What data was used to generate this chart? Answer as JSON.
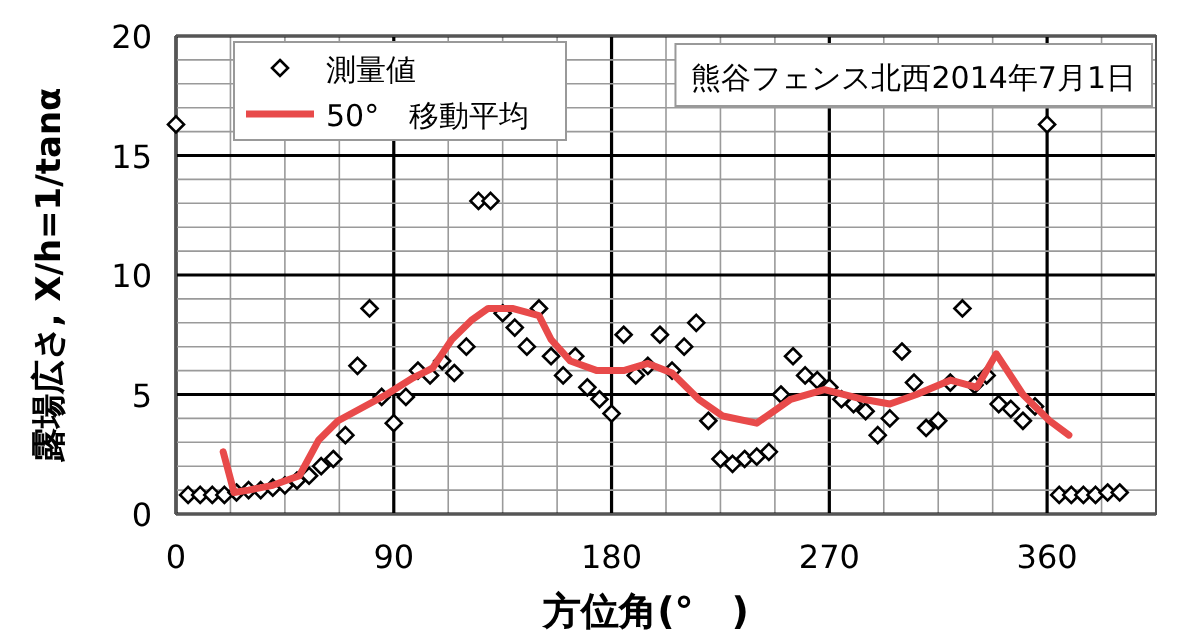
{
  "chart_data": {
    "type": "scatter",
    "xlabel": "方位角(°　)",
    "ylabel": "露場広さ, X/h=1/tanα",
    "annotations": [
      "熊谷フェンス北西2014年7月1日"
    ],
    "xlim": [
      0,
      405
    ],
    "ylim": [
      0,
      20
    ],
    "xticks": [
      0,
      90,
      180,
      270,
      360
    ],
    "yticks": [
      0,
      5,
      10,
      15,
      20
    ],
    "grid": true,
    "legend": "top left",
    "series": [
      {
        "name": "測量値",
        "marker": "diamond",
        "color": "#000000",
        "x": [
          0,
          5,
          10,
          15,
          20,
          25,
          30,
          35,
          40,
          45,
          50,
          55,
          60,
          65,
          70,
          75,
          80,
          85,
          90,
          95,
          100,
          105,
          110,
          115,
          120,
          125,
          130,
          135,
          140,
          145,
          150,
          155,
          160,
          165,
          170,
          175,
          180,
          185,
          190,
          195,
          200,
          205,
          210,
          215,
          220,
          225,
          230,
          235,
          240,
          245,
          250,
          255,
          260,
          265,
          270,
          275,
          280,
          285,
          290,
          295,
          300,
          305,
          310,
          315,
          320,
          325,
          330,
          335,
          340,
          345,
          350,
          355,
          360,
          365,
          370,
          375,
          380,
          385,
          390
        ],
        "values": [
          16.3,
          0.8,
          0.8,
          0.8,
          0.8,
          0.9,
          1.0,
          1.0,
          1.1,
          1.2,
          1.4,
          1.6,
          2.0,
          2.3,
          3.3,
          6.2,
          8.6,
          4.9,
          3.8,
          4.9,
          6.0,
          5.8,
          6.4,
          5.9,
          7.0,
          13.1,
          13.1,
          8.4,
          7.8,
          7.0,
          8.6,
          6.6,
          5.8,
          6.6,
          5.3,
          4.8,
          4.2,
          7.5,
          5.8,
          6.2,
          7.5,
          6.0,
          7.0,
          8.0,
          3.9,
          2.3,
          2.1,
          2.3,
          2.4,
          2.6,
          5.0,
          6.6,
          5.8,
          5.6,
          5.3,
          4.8,
          4.6,
          4.3,
          3.3,
          4.0,
          6.8,
          5.5,
          3.6,
          3.9,
          5.5,
          8.6,
          5.4,
          5.8,
          4.6,
          4.4,
          3.9,
          4.5,
          16.3,
          0.8,
          0.8,
          0.8,
          0.8,
          0.9,
          0.9
        ]
      },
      {
        "name": "50°　移動平均",
        "type": "line",
        "marker": "none",
        "line_style": "solid",
        "color": "#e84a4a",
        "x": [
          19.5,
          24,
          30,
          40,
          51,
          59,
          67,
          87,
          98,
          106,
          114,
          122,
          129,
          139,
          150,
          155,
          163,
          174,
          185,
          195,
          205,
          216,
          226,
          240,
          254,
          268,
          284,
          295,
          306,
          320,
          331,
          339,
          350,
          361,
          369
        ],
        "values": [
          2.6,
          0.9,
          1.0,
          1.2,
          1.6,
          3.1,
          3.9,
          5.0,
          5.7,
          6.1,
          7.3,
          8.1,
          8.6,
          8.6,
          8.3,
          7.3,
          6.4,
          6.0,
          6.0,
          6.3,
          5.9,
          4.8,
          4.1,
          3.8,
          4.8,
          5.2,
          4.8,
          4.6,
          5.0,
          5.6,
          5.3,
          6.7,
          5.0,
          3.9,
          3.3
        ]
      }
    ]
  }
}
